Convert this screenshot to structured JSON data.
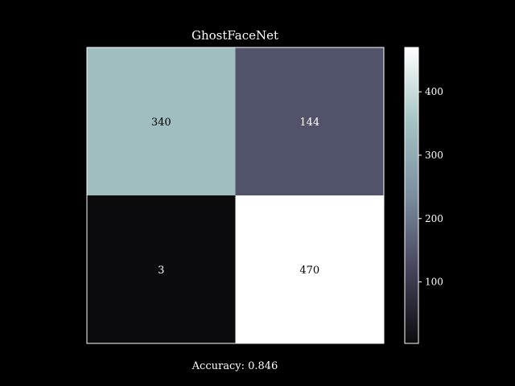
{
  "chart_data": {
    "type": "heatmap",
    "title": "GhostFaceNet",
    "matrix": [
      [
        340,
        144
      ],
      [
        3,
        470
      ]
    ],
    "colorbar": {
      "range": [
        3,
        470
      ],
      "ticks": [
        100,
        200,
        300,
        400
      ],
      "colormap": [
        "#0b0b0e",
        "#46445c",
        "#7b8ea0",
        "#a5c3c3",
        "#ffffff"
      ]
    },
    "grid": false
  },
  "footer": {
    "accuracy": "Accuracy: 0.846"
  }
}
